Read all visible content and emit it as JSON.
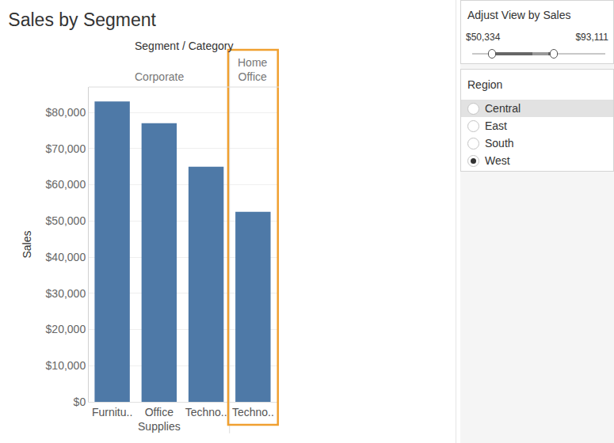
{
  "chart_data": {
    "type": "bar",
    "title": "Sales by Segment",
    "x_label": "Segment / Category",
    "y_label": "Sales",
    "categories": [
      "Furnitu..",
      "Office Supplies",
      "Techno..",
      "Techno.."
    ],
    "segments": [
      "Corporate",
      "Corporate",
      "Corporate",
      "Home Office"
    ],
    "values": [
      83000,
      77000,
      65000,
      52500
    ],
    "color": "#4e79a7",
    "ylim": [
      0,
      87000
    ],
    "yticks": [
      {
        "value": 0,
        "label": "$0"
      },
      {
        "value": 10000,
        "label": "$10,000"
      },
      {
        "value": 20000,
        "label": "$20,000"
      },
      {
        "value": 30000,
        "label": "$30,000"
      },
      {
        "value": 40000,
        "label": "$40,000"
      },
      {
        "value": 50000,
        "label": "$50,000"
      },
      {
        "value": 60000,
        "label": "$60,000"
      },
      {
        "value": 70000,
        "label": "$70,000"
      },
      {
        "value": 80000,
        "label": "$80,000"
      }
    ],
    "grid": true
  },
  "highlight": {
    "segment": "Home Office"
  },
  "controls": {
    "range_filter": {
      "title": "Adjust View by Sales",
      "min_label": "$50,334",
      "max_label": "$93,111"
    },
    "region_filter": {
      "title": "Region",
      "options": [
        "Central",
        "East",
        "South",
        "West"
      ],
      "selected": "West",
      "hovered": "Central"
    }
  }
}
